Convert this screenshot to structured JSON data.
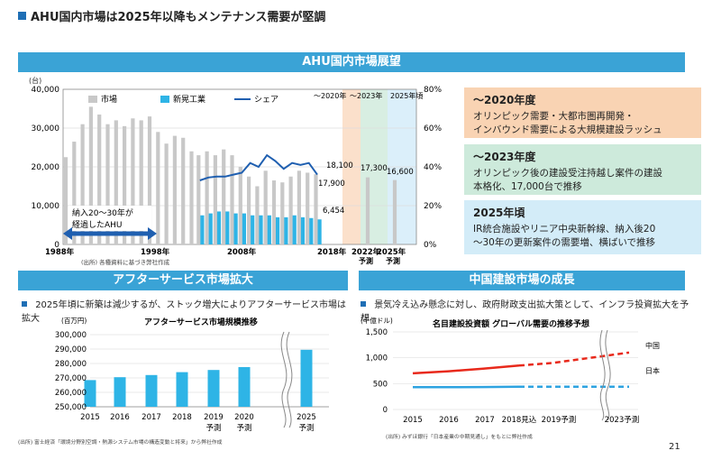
{
  "page": {
    "title": "AHU国内市場は2025年以降もメンテナンス需要が堅調",
    "number": "21"
  },
  "top": {
    "banner": "AHU国内市場展望",
    "source": "(出所) 各種資料に基づき弊社作成",
    "unit_left": "(台)",
    "annot_box": "納入20～30年が経過したAHU",
    "annot_box_lines": [
      "納入20～30年が",
      "経過したAHU"
    ],
    "period_labels": [
      "～2020年",
      "～2023年",
      "2025年頃"
    ],
    "value_labels": [
      "18,100",
      "17,900",
      "6,454",
      "17,300",
      "16,600"
    ],
    "boxes": [
      {
        "title": "～2020年度",
        "lines": [
          "オリンピック需要・大都市圏再開発・",
          "インバウンド需要による大規模建設ラッシュ"
        ],
        "bg": "#f9d3b3"
      },
      {
        "title": "～2023年度",
        "lines": [
          "オリンピック後の建設受注持越し案件の建設",
          "本格化、17,000台で推移"
        ],
        "bg": "#cdeadb"
      },
      {
        "title": "2025年頃",
        "lines": [
          "IR統合施設やリニア中央新幹線、納入後20",
          "～30年の更新案件の需要増、横ばいで推移"
        ],
        "bg": "#d3ecf8"
      }
    ]
  },
  "bottom_left": {
    "banner": "アフターサービス市場拡大",
    "bullet": "2025年頃に新築は減少するが、ストック増大によりアフターサービス市場は拡大",
    "source": "(出所) 富士経済「環境分野別空調・熱源システム市場の構造変動と将来」から弊社作成"
  },
  "bottom_right": {
    "banner": "中国建設市場の成長",
    "bullet": "景気冷え込み懸念に対し、政府財政支出拡大策として、インフラ投資拡大を予想",
    "source": "(出所) みずほ銀行「日本産業の中期見通し」をもとに弊社作成"
  },
  "chart_data": [
    {
      "type": "bar",
      "title": "",
      "ylabel": "(台)",
      "ylim": [
        0,
        40000
      ],
      "y2lim": [
        0,
        0.8
      ],
      "y_ticks": [
        "0",
        "10,000",
        "20,000",
        "30,000",
        "40,000"
      ],
      "y2_ticks": [
        "0%",
        "20%",
        "40%",
        "60%",
        "80%"
      ],
      "x_labels": [
        "1988年",
        "1998年",
        "2008年",
        "2018年",
        "2022年",
        "2025年"
      ],
      "x_sublabels": [
        "予測",
        "予測"
      ],
      "legend": [
        "市場",
        "新晃工業",
        "シェア"
      ],
      "colors": {
        "market": "#c8c8c8",
        "company": "#2eb4e6",
        "share": "#1f5fb0"
      },
      "categories": [
        "1988",
        "1989",
        "1990",
        "1991",
        "1992",
        "1993",
        "1994",
        "1995",
        "1996",
        "1997",
        "1998",
        "1999",
        "2000",
        "2001",
        "2002",
        "2003",
        "2004",
        "2005",
        "2006",
        "2007",
        "2008",
        "2009",
        "2010",
        "2011",
        "2012",
        "2013",
        "2014",
        "2015",
        "2016",
        "2017",
        "2018",
        "2022",
        "2025"
      ],
      "series": [
        {
          "name": "市場",
          "values": [
            22500,
            26500,
            31000,
            35500,
            33500,
            31000,
            32000,
            30500,
            32500,
            32000,
            33000,
            29000,
            26000,
            28000,
            27500,
            24000,
            23000,
            24000,
            23000,
            24500,
            23000,
            20000,
            17500,
            15000,
            19000,
            16500,
            16000,
            17500,
            19000,
            18500,
            18100,
            17300,
            16600
          ]
        },
        {
          "name": "新晃工業",
          "values": [
            null,
            null,
            null,
            null,
            null,
            null,
            null,
            null,
            null,
            null,
            null,
            null,
            null,
            null,
            null,
            null,
            7500,
            8000,
            8500,
            8500,
            8000,
            8000,
            7500,
            7500,
            7500,
            7000,
            7000,
            7500,
            7000,
            6800,
            6454,
            null,
            null
          ]
        },
        {
          "name": "シェア",
          "values": [
            null,
            null,
            null,
            null,
            null,
            null,
            null,
            null,
            null,
            null,
            null,
            null,
            null,
            null,
            null,
            null,
            0.33,
            0.345,
            0.35,
            0.35,
            0.36,
            0.37,
            0.42,
            0.4,
            0.46,
            0.43,
            0.39,
            0.42,
            0.41,
            0.42,
            0.36,
            null,
            null
          ]
        }
      ]
    },
    {
      "type": "bar",
      "title": "アフターサービス市場規模推移",
      "ylabel": "(百万円)",
      "ylim": [
        250000,
        300000
      ],
      "y_ticks": [
        "250,000",
        "260,000",
        "270,000",
        "280,000",
        "290,000",
        "300,000"
      ],
      "categories": [
        "2015",
        "2016",
        "2017",
        "2018",
        "2019",
        "2020",
        "2025"
      ],
      "sublabels": [
        "",
        "",
        "",
        "",
        "予測",
        "予測",
        "予測"
      ],
      "values": [
        268500,
        270500,
        272000,
        274000,
        275500,
        277500,
        289500
      ],
      "color": "#2eb4e6"
    },
    {
      "type": "line",
      "title": "名目建設投資額 グローバル需要の推移予想",
      "ylabel": "(十億ドル)",
      "ylim": [
        0,
        1500
      ],
      "y_ticks": [
        "0",
        "500",
        "1,000",
        "1,500"
      ],
      "x_labels": [
        "2015",
        "2016",
        "2017",
        "2018見込",
        "2019予測",
        "2023予測"
      ],
      "series": [
        {
          "name": "中国",
          "color": "#e8291b",
          "values": [
            700,
            740,
            790,
            850,
            900,
            1100
          ]
        },
        {
          "name": "日本",
          "color": "#2ea3e0",
          "values": [
            430,
            430,
            435,
            440,
            440,
            440
          ]
        }
      ]
    }
  ]
}
